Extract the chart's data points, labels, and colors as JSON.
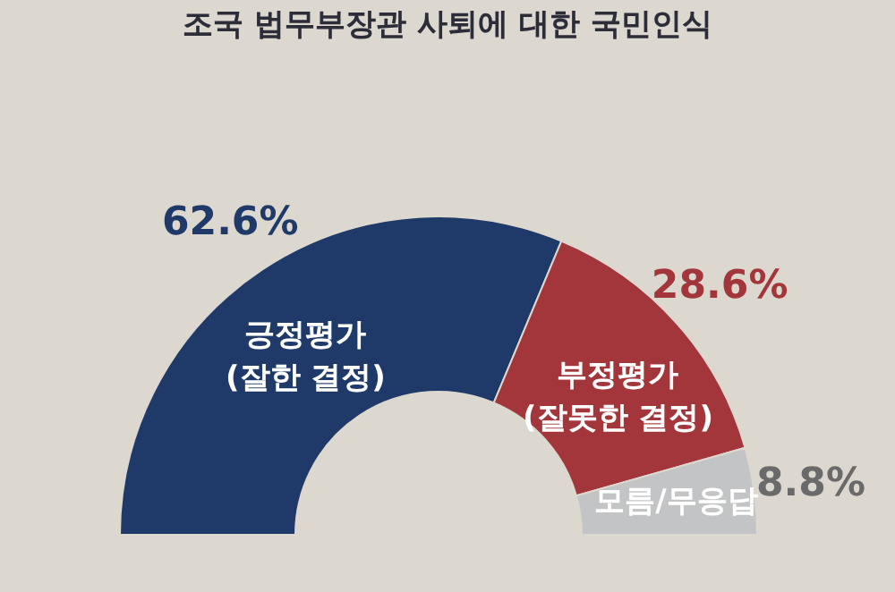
{
  "chart_data": {
    "type": "donut",
    "title": "조국 법무부장관 사퇴에 대한 국민인식",
    "categories": [
      "긍정평가\n(잘한 결정)",
      "부정평가\n(잘못한 결정)",
      "모름/무응답"
    ],
    "values": [
      62.6,
      28.6,
      8.8
    ],
    "colors": [
      "#1f3a68",
      "#a2363a",
      "#c3c4c6"
    ],
    "value_labels": [
      "62.6%",
      "28.6%",
      "8.8%"
    ],
    "legend": false
  }
}
